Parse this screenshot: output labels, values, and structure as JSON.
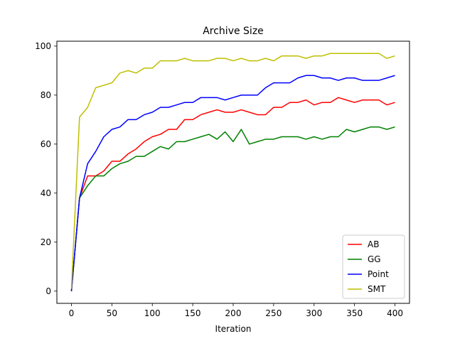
{
  "chart_data": {
    "type": "line",
    "title": "Archive Size",
    "xlabel": "Iteration",
    "ylabel": "",
    "xlim": [
      -18,
      418
    ],
    "ylim": [
      -5,
      102
    ],
    "xticks": [
      0,
      50,
      100,
      150,
      200,
      250,
      300,
      350,
      400
    ],
    "yticks": [
      0,
      20,
      40,
      60,
      80,
      100
    ],
    "grid": false,
    "legend_position": "lower-right",
    "x": [
      0,
      10,
      20,
      30,
      40,
      50,
      60,
      70,
      80,
      90,
      100,
      110,
      120,
      130,
      140,
      150,
      160,
      170,
      180,
      190,
      200,
      210,
      220,
      230,
      240,
      250,
      260,
      270,
      280,
      290,
      300,
      310,
      320,
      330,
      340,
      350,
      360,
      370,
      380,
      390,
      400
    ],
    "series": [
      {
        "name": "AB",
        "color": "#ff0000",
        "values": [
          0,
          38,
          47,
          47,
          49,
          53,
          53,
          56,
          58,
          61,
          63,
          64,
          66,
          66,
          70,
          70,
          72,
          73,
          74,
          73,
          73,
          74,
          73,
          72,
          72,
          75,
          75,
          77,
          77,
          78,
          76,
          77,
          77,
          79,
          78,
          77,
          78,
          78,
          78,
          76,
          77
        ]
      },
      {
        "name": "GG",
        "color": "#008000",
        "values": [
          0,
          38,
          43,
          47,
          47,
          50,
          52,
          53,
          55,
          55,
          57,
          59,
          58,
          61,
          61,
          62,
          63,
          64,
          62,
          65,
          61,
          66,
          60,
          61,
          62,
          62,
          63,
          63,
          63,
          62,
          63,
          62,
          63,
          63,
          66,
          65,
          66,
          67,
          67,
          66,
          67
        ]
      },
      {
        "name": "Point",
        "color": "#0000ff",
        "values": [
          0,
          38,
          52,
          57,
          63,
          66,
          67,
          70,
          70,
          72,
          73,
          75,
          75,
          76,
          77,
          77,
          79,
          79,
          79,
          78,
          79,
          80,
          80,
          80,
          83,
          85,
          85,
          85,
          87,
          88,
          88,
          87,
          87,
          86,
          87,
          87,
          86,
          86,
          86,
          87,
          88
        ]
      },
      {
        "name": "SMT",
        "color": "#bfbf00",
        "values": [
          1,
          71,
          75,
          83,
          84,
          85,
          89,
          90,
          89,
          91,
          91,
          94,
          94,
          94,
          95,
          94,
          94,
          94,
          95,
          95,
          94,
          95,
          94,
          94,
          95,
          94,
          96,
          96,
          96,
          95,
          96,
          96,
          97,
          97,
          97,
          97,
          97,
          97,
          97,
          95,
          96
        ]
      }
    ]
  }
}
